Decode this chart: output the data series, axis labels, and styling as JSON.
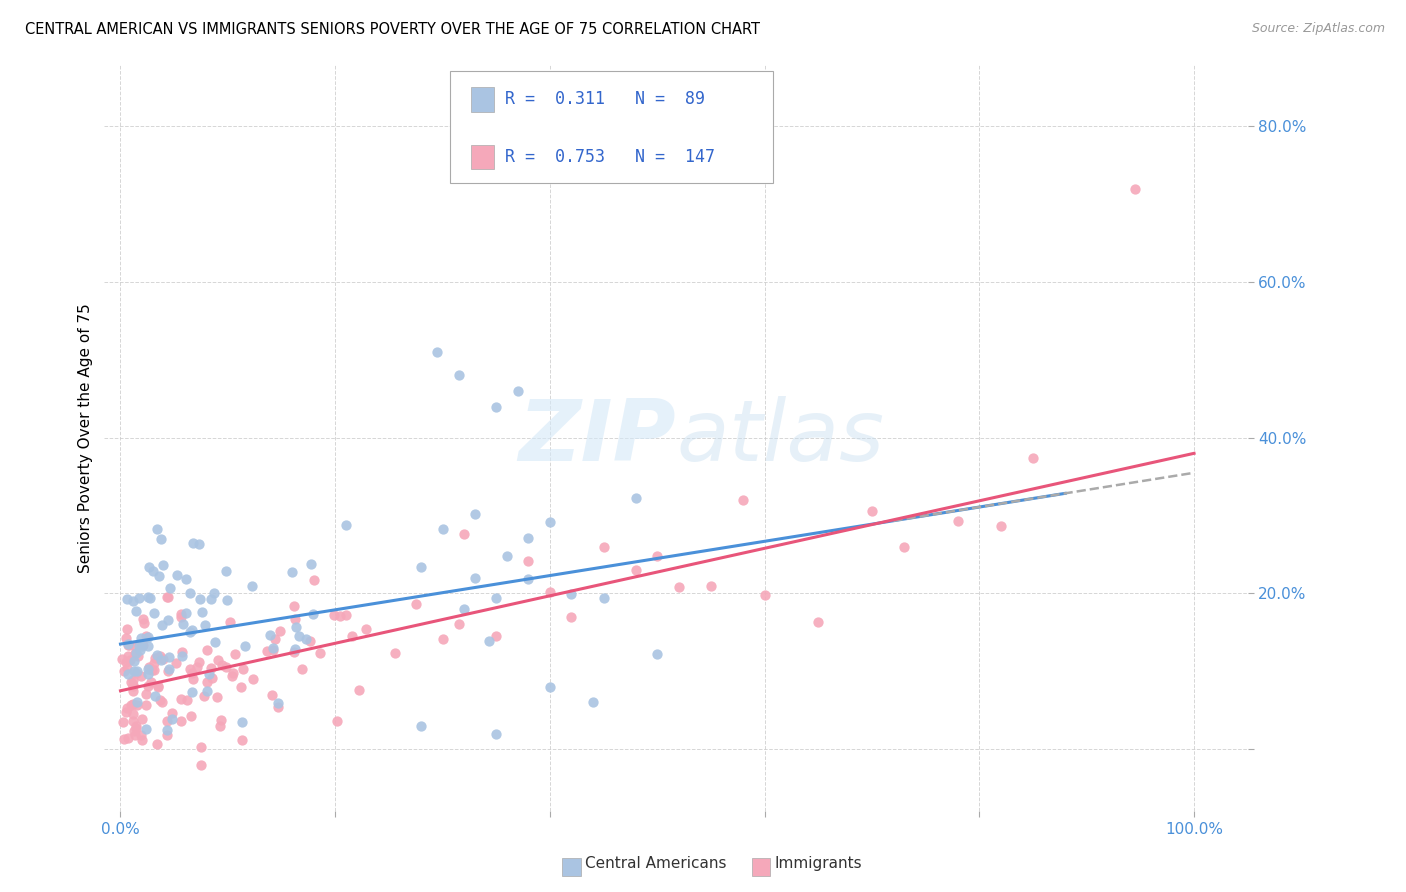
{
  "title": "CENTRAL AMERICAN VS IMMIGRANTS SENIORS POVERTY OVER THE AGE OF 75 CORRELATION CHART",
  "source": "Source: ZipAtlas.com",
  "ylabel": "Seniors Poverty Over the Age of 75",
  "r_ca": 0.311,
  "n_ca": 89,
  "r_imm": 0.753,
  "n_imm": 147,
  "ca_color": "#aac4e2",
  "imm_color": "#f5a8ba",
  "ca_line_color": "#4a90d9",
  "imm_line_color": "#e8557a",
  "dash_line_color": "#aaaaaa",
  "legend_label_ca": "Central Americans",
  "legend_label_imm": "Immigrants",
  "watermark_text": "ZIPatlas",
  "background_color": "#ffffff",
  "grid_color": "#cccccc",
  "tick_color": "#4a90d9",
  "xlim": [
    -0.015,
    1.05
  ],
  "ylim": [
    -0.08,
    0.88
  ],
  "x_ticks": [
    0.0,
    0.2,
    0.4,
    0.6,
    0.8,
    1.0
  ],
  "x_tick_labels": [
    "0.0%",
    "",
    "",
    "",
    "",
    "100.0%"
  ],
  "y_ticks": [
    0.0,
    0.2,
    0.4,
    0.6,
    0.8
  ],
  "y_tick_labels": [
    "",
    "20.0%",
    "40.0%",
    "60.0%",
    "80.0%"
  ],
  "ca_intercept": 0.135,
  "ca_slope": 0.22,
  "imm_intercept": 0.075,
  "imm_slope": 0.305,
  "ca_seed": 42,
  "imm_seed": 99
}
